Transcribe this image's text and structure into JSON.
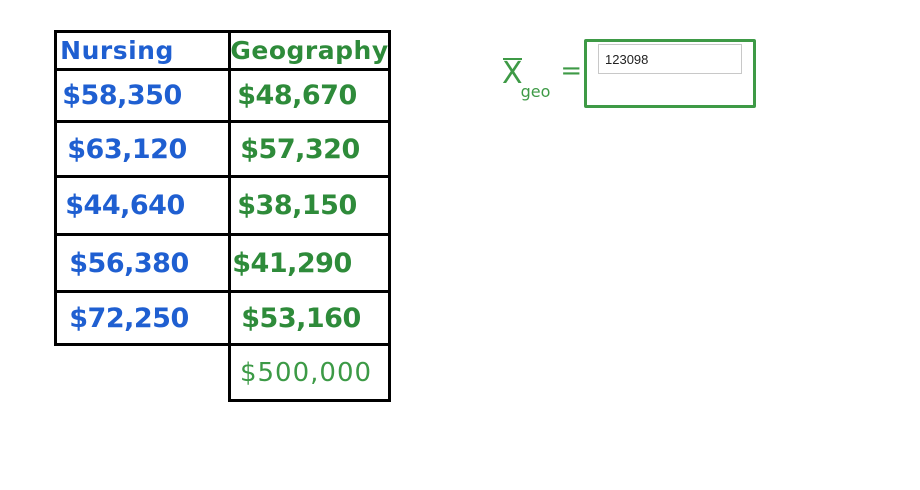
{
  "table": {
    "headers": {
      "nursing": "Nursing",
      "geography": "Geography"
    },
    "rows": [
      {
        "nursing": "$58,350",
        "geography": "$48,670"
      },
      {
        "nursing": "$63,120",
        "geography": "$57,320"
      },
      {
        "nursing": "$44,640",
        "geography": "$38,150"
      },
      {
        "nursing": "$56,380",
        "geography": "$41,290"
      },
      {
        "nursing": "$72,250",
        "geography": "$53,160"
      }
    ],
    "extra_geography": "$500,000"
  },
  "formula": {
    "symbol": "X",
    "subscript": "geo",
    "equals": "="
  },
  "answer": {
    "value": "123098"
  },
  "colors": {
    "nursing": "#1f5fd1",
    "geography": "#2e8b3a",
    "box": "#3e9a46"
  }
}
